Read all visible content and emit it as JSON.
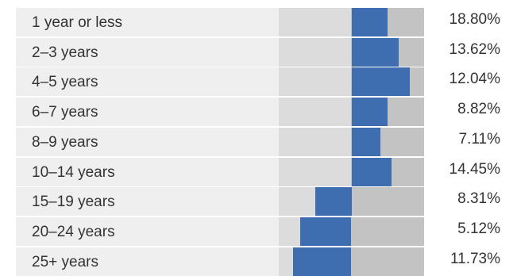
{
  "chart_data": {
    "type": "bar",
    "categories": [
      "1 year or less",
      "2–3 years",
      "4–5 years",
      "6–7 years",
      "8–9 years",
      "10–14 years",
      "15–19 years",
      "20–24 years",
      "25+ years"
    ],
    "value_labels": [
      "18.80%",
      "13.62%",
      "12.04%",
      "8.82%",
      "7.11%",
      "14.45%",
      "8.31%",
      "5.12%",
      "11.73%"
    ],
    "bar_start": [
      0.0,
      0.0,
      0.0,
      0.0,
      0.0,
      0.0,
      -1.0,
      -1.4,
      -1.6
    ],
    "bar_end": [
      1.0,
      1.3,
      1.6,
      1.0,
      0.8,
      1.1,
      0.0,
      0.0,
      0.0
    ],
    "bar_range": [
      -2.0,
      2.0
    ],
    "colors": {
      "bar": "#3f6eb0",
      "label_background": "#efefef",
      "track_left": "#dcdcdc",
      "track_right": "#c3c3c3",
      "text": "#333333"
    }
  }
}
